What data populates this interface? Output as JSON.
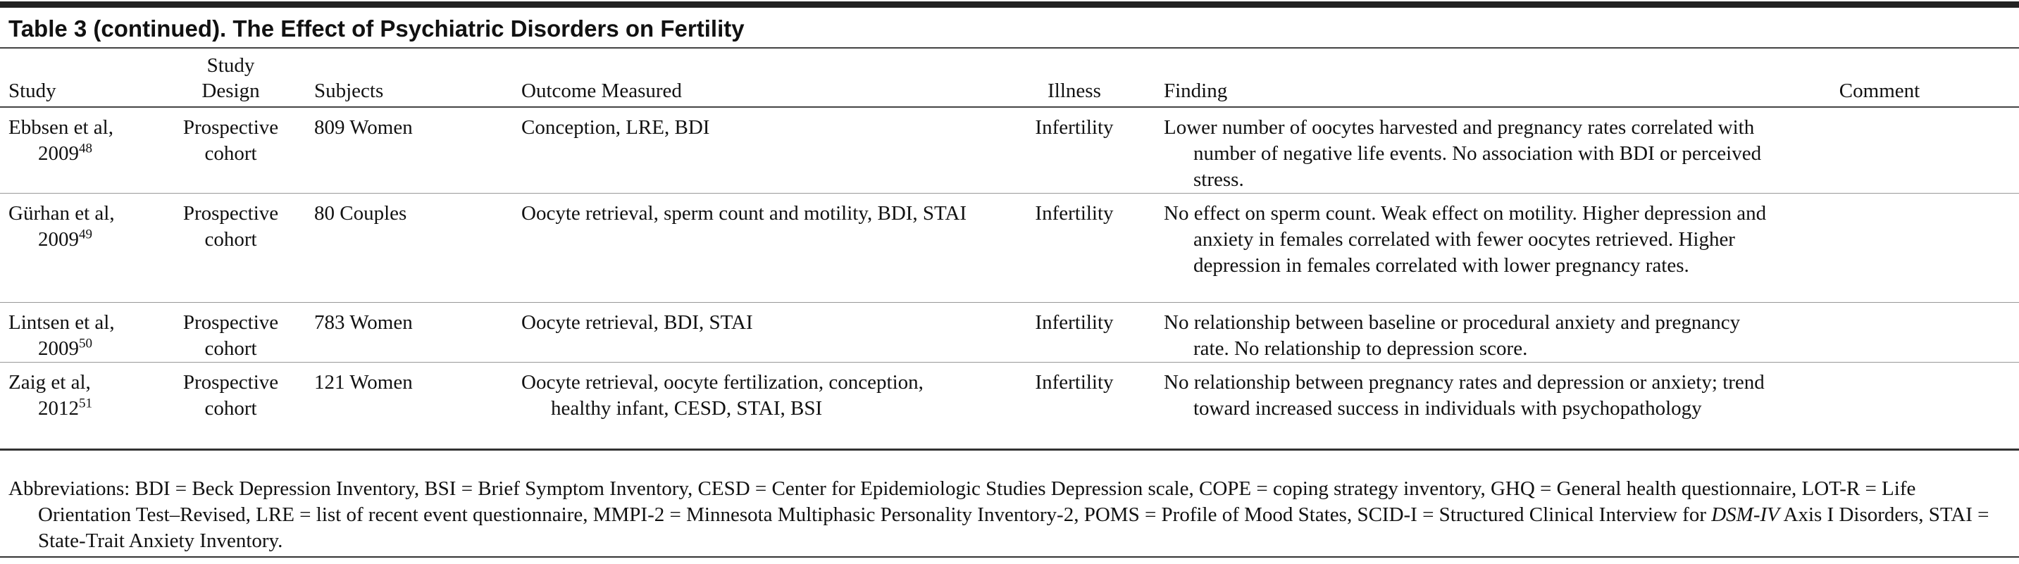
{
  "title": "Table 3 (continued). The Effect of Psychiatric Disorders on Fertility",
  "table": {
    "columns": [
      "Study",
      "Study Design",
      "Subjects",
      "Outcome Measured",
      "Illness",
      "Finding",
      "Comment"
    ],
    "rows": [
      {
        "authors": "Ebbsen et al,",
        "year": "2009",
        "ref": "48",
        "design": "Prospective cohort",
        "subjects": "809 Women",
        "outcome": "Conception, LRE, BDI",
        "illness": "Infertility",
        "finding": "Lower number of oocytes harvested and pregnancy rates correlated with number of negative life events. No association with BDI or perceived stress."
      },
      {
        "authors": "Gürhan et al,",
        "year": "2009",
        "ref": "49",
        "design": "Prospective cohort",
        "subjects": "80 Couples",
        "outcome": "Oocyte retrieval, sperm count and motility, BDI, STAI",
        "illness": "Infertility",
        "finding": "No effect on sperm count. Weak effect on motility. Higher depression and anxiety in females correlated with fewer oocytes retrieved. Higher depression in females correlated with lower pregnancy rates."
      },
      {
        "authors": "Lintsen et al,",
        "year": "2009",
        "ref": "50",
        "design": "Prospective cohort",
        "subjects": "783 Women",
        "outcome": "Oocyte retrieval, BDI, STAI",
        "illness": "Infertility",
        "finding": "No relationship between baseline or procedural anxiety and pregnancy rate. No relationship to depression score."
      },
      {
        "authors": "Zaig et al,",
        "year": "2012",
        "ref": "51",
        "design": "Prospective cohort",
        "subjects": "121 Women",
        "outcome": "Oocyte retrieval, oocyte fertilization, conception, healthy infant, CESD, STAI, BSI",
        "illness": "Infertility",
        "finding": "No relationship between pregnancy rates and depression or anxiety; trend toward increased success in individuals with psychopathology"
      }
    ]
  },
  "footnote": {
    "before": "Abbreviations: BDI = Beck Depression Inventory, BSI = Brief Symptom Inventory, CESD = Center for Epidemiologic Studies Depression scale, COPE = coping strategy inventory, GHQ = General health questionnaire, LOT-R = Life Orientation Test–Revised, LRE = list of recent event questionnaire, MMPI-2 = Minnesota Multiphasic Personality Inventory-2, POMS = Profile of Mood States, SCID-I = Structured Clinical Interview for ",
    "italic": "DSM-IV",
    "after": " Axis I Disorders, STAI = State-Trait Anxiety Inventory."
  }
}
